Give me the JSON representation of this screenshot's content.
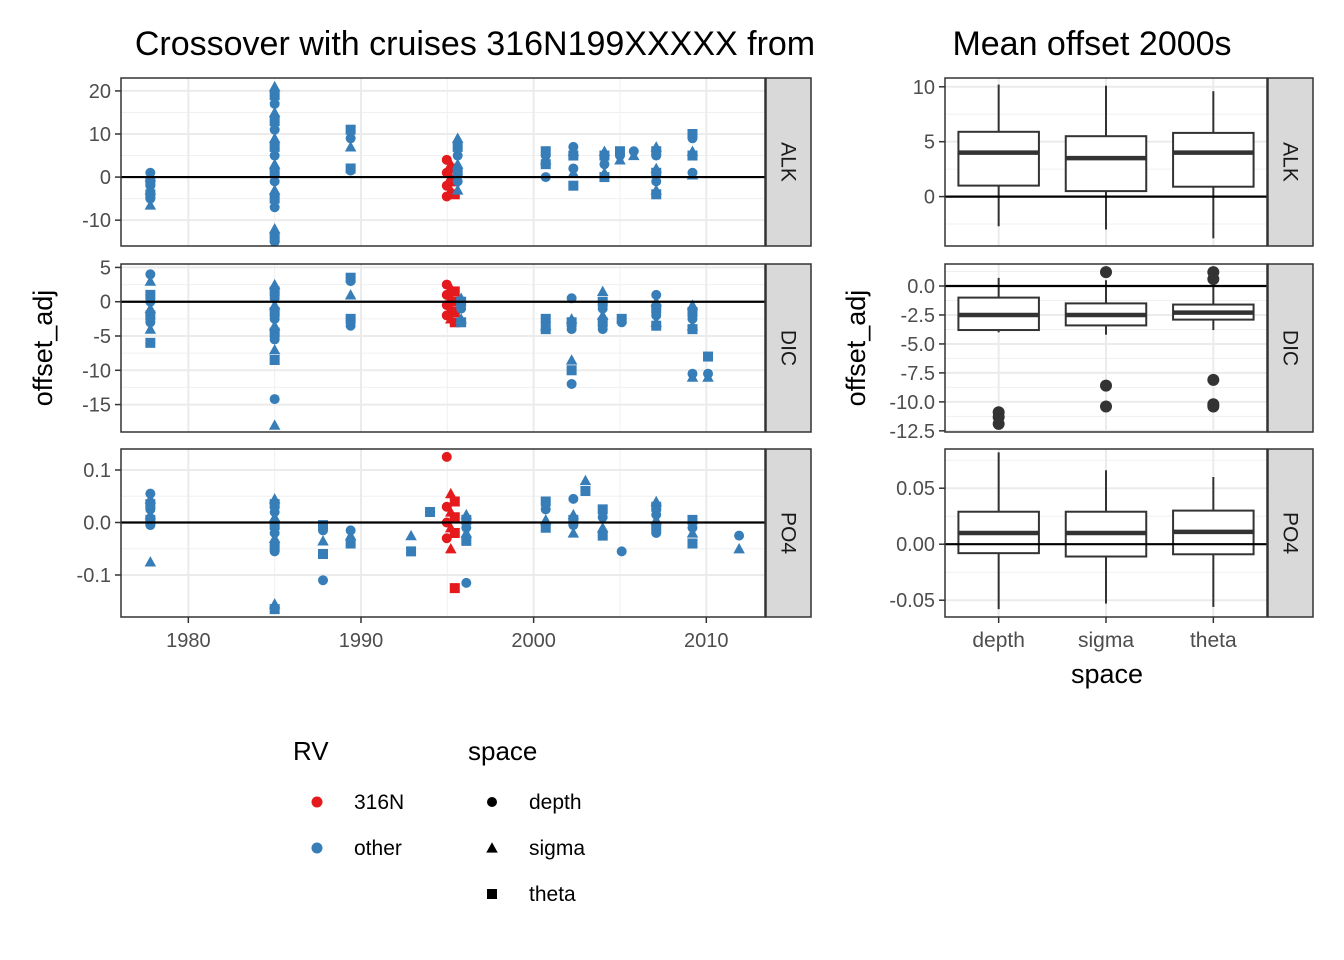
{
  "chart_data": [
    {
      "type": "scatter",
      "title": "Crossover with cruises 316N199XXXXX from",
      "xlabel": "",
      "ylabel": "offset_adj",
      "x_ticks": [
        1980,
        1990,
        2000,
        2010
      ],
      "xlim": [
        1976.1,
        2013.4
      ],
      "hline": 0,
      "series": [
        {
          "name": "316N",
          "color": "#E41A1C"
        },
        {
          "name": "other",
          "color": "#377EB8"
        }
      ],
      "facets": [
        {
          "label": "ALK",
          "ylim": [
            -16,
            23
          ],
          "y_ticks": [
            20,
            10,
            0,
            -10
          ],
          "y_tick_labels": [
            "20",
            "10",
            "0",
            "-10"
          ],
          "points": [
            {
              "x": 1977.8,
              "ys": [
                1,
                0,
                -1,
                -2,
                -3,
                -4,
                -5,
                -6.5
              ],
              "rv": "other"
            },
            {
              "x": 1985.0,
              "ys": [
                21,
                19,
                17,
                15,
                13,
                11,
                9,
                7,
                5,
                3,
                1,
                -1,
                -3,
                -5,
                -7,
                -12,
                -14,
                -15
              ],
              "rv": "other"
            },
            {
              "x": 1989.4,
              "ys": [
                11,
                9,
                7,
                2,
                1.5
              ],
              "rv": "other"
            },
            {
              "x": 1995.2,
              "ys": [
                4,
                3,
                2,
                1,
                0,
                -1,
                -2,
                -3,
                -4,
                -4.5
              ],
              "rv": "316N"
            },
            {
              "x": 1995.6,
              "ys": [
                9,
                7,
                5,
                3,
                1,
                -1,
                -3
              ],
              "rv": "other"
            },
            {
              "x": 2000.7,
              "ys": [
                6,
                5,
                4,
                3,
                0
              ],
              "rv": "other"
            },
            {
              "x": 2002.3,
              "ys": [
                7,
                6,
                5,
                2,
                1,
                -2
              ],
              "rv": "other"
            },
            {
              "x": 2004.1,
              "ys": [
                6,
                5,
                3,
                1,
                0
              ],
              "rv": "other"
            },
            {
              "x": 2005.0,
              "ys": [
                6,
                5,
                4
              ],
              "rv": "other"
            },
            {
              "x": 2005.8,
              "ys": [
                6,
                5
              ],
              "rv": "other"
            },
            {
              "x": 2007.1,
              "ys": [
                7,
                6,
                5,
                2,
                1,
                -1,
                -3,
                -4
              ],
              "rv": "other"
            },
            {
              "x": 2009.2,
              "ys": [
                10,
                9,
                6,
                5,
                1,
                0.5
              ],
              "rv": "other"
            }
          ]
        },
        {
          "label": "DIC",
          "ylim": [
            -19,
            5.5
          ],
          "y_ticks": [
            5,
            0,
            -5,
            -10,
            -15
          ],
          "y_tick_labels": [
            "5",
            "0",
            "-5",
            "-10",
            "-15"
          ],
          "points": [
            {
              "x": 1977.8,
              "ys": [
                4,
                3,
                1,
                0,
                -1,
                -2,
                -3,
                -4,
                -6
              ],
              "rv": "other"
            },
            {
              "x": 1985.0,
              "ys": [
                2.5,
                1.5,
                0.5,
                -0.5,
                -1.5,
                -2.5,
                -3.5,
                -4.5,
                -5.5,
                -7,
                -8.5,
                -14.2,
                -18
              ],
              "rv": "other"
            },
            {
              "x": 1989.4,
              "ys": [
                3.5,
                3,
                1,
                -2.5,
                -3.5
              ],
              "rv": "other"
            },
            {
              "x": 1995.2,
              "ys": [
                2.5,
                2,
                1.5,
                1,
                0.5,
                0,
                -0.5,
                -1,
                -1.5,
                -2,
                -2.5,
                -3
              ],
              "rv": "316N"
            },
            {
              "x": 1995.8,
              "ys": [
                0.5,
                0,
                -1,
                -2.5,
                -3
              ],
              "rv": "other"
            },
            {
              "x": 2000.7,
              "ys": [
                -2.5,
                -3,
                -3.5,
                -4
              ],
              "rv": "other"
            },
            {
              "x": 2002.2,
              "ys": [
                0.5,
                -2.5,
                -3,
                -4,
                -8.5,
                -10,
                -12
              ],
              "rv": "other"
            },
            {
              "x": 2004.0,
              "ys": [
                1.5,
                0,
                -1,
                -2,
                -3,
                -4
              ],
              "rv": "other"
            },
            {
              "x": 2005.1,
              "ys": [
                -2.5,
                -3
              ],
              "rv": "other"
            },
            {
              "x": 2007.1,
              "ys": [
                1,
                0,
                -1,
                -2,
                -3,
                -3.5
              ],
              "rv": "other"
            },
            {
              "x": 2009.2,
              "ys": [
                -0.5,
                -1.5,
                -2.5,
                -3.5,
                -4,
                -10.5,
                -11
              ],
              "rv": "other"
            },
            {
              "x": 2010.1,
              "ys": [
                -8,
                -10.5,
                -11
              ],
              "rv": "other"
            }
          ]
        },
        {
          "label": "PO4",
          "ylim": [
            -0.18,
            0.14
          ],
          "y_ticks": [
            0.1,
            0.0,
            -0.1
          ],
          "y_tick_labels": [
            "0.1",
            "0.0",
            "-0.1"
          ],
          "points": [
            {
              "x": 1977.8,
              "ys": [
                0.055,
                0.045,
                0.035,
                0.025,
                0.015,
                0.005,
                -0.005,
                -0.075
              ],
              "rv": "other"
            },
            {
              "x": 1985.0,
              "ys": [
                0.045,
                0.035,
                0.02,
                0.01,
                -0.005,
                -0.02,
                -0.03,
                -0.045,
                -0.055,
                -0.155,
                -0.165
              ],
              "rv": "other"
            },
            {
              "x": 1987.8,
              "ys": [
                -0.005,
                -0.015,
                -0.035,
                -0.06,
                -0.11
              ],
              "rv": "other"
            },
            {
              "x": 1989.4,
              "ys": [
                -0.015,
                -0.025,
                -0.04
              ],
              "rv": "other"
            },
            {
              "x": 1992.9,
              "ys": [
                -0.025,
                -0.055
              ],
              "rv": "other"
            },
            {
              "x": 1994.0,
              "ys": [
                0.02
              ],
              "rv": "other"
            },
            {
              "x": 1995.2,
              "ys": [
                0.125,
                0.055,
                0.04,
                0.03,
                0.02,
                0.01,
                0,
                -0.01,
                -0.02,
                -0.03,
                -0.05,
                -0.125
              ],
              "rv": "316N"
            },
            {
              "x": 1996.1,
              "ys": [
                0.015,
                0.005,
                -0.01,
                -0.02,
                -0.035,
                -0.115
              ],
              "rv": "other"
            },
            {
              "x": 2000.7,
              "ys": [
                0.04,
                0.025,
                0.005,
                -0.01
              ],
              "rv": "other"
            },
            {
              "x": 2002.3,
              "ys": [
                0.045,
                0.015,
                0.005,
                -0.005,
                -0.02
              ],
              "rv": "other"
            },
            {
              "x": 2003.0,
              "ys": [
                0.08,
                0.06
              ],
              "rv": "other"
            },
            {
              "x": 2004.0,
              "ys": [
                0.025,
                0.01,
                -0.01,
                -0.025
              ],
              "rv": "other"
            },
            {
              "x": 2005.1,
              "ys": [
                -0.055
              ],
              "rv": "other"
            },
            {
              "x": 2007.1,
              "ys": [
                0.04,
                0.03,
                0.015,
                0.005,
                -0.01,
                -0.02
              ],
              "rv": "other"
            },
            {
              "x": 2009.2,
              "ys": [
                0.005,
                -0.01,
                -0.02,
                -0.04
              ],
              "rv": "other"
            },
            {
              "x": 2011.9,
              "ys": [
                -0.025,
                -0.05
              ],
              "rv": "other"
            }
          ]
        }
      ]
    },
    {
      "type": "box",
      "title": "Mean offset 2000s",
      "xlabel": "space",
      "ylabel": "offset_adj",
      "categories": [
        "depth",
        "sigma",
        "theta"
      ],
      "hline": 0,
      "facets": [
        {
          "label": "ALK",
          "ylim": [
            -4.5,
            10.8
          ],
          "y_ticks": [
            10,
            5,
            0
          ],
          "y_tick_labels": [
            "10",
            "5",
            "0"
          ],
          "boxes": [
            {
              "category": "depth",
              "min": -2.7,
              "q1": 1.0,
              "median": 4.0,
              "q3": 5.9,
              "max": 10.2,
              "outliers": []
            },
            {
              "category": "sigma",
              "min": -3.0,
              "q1": 0.5,
              "median": 3.5,
              "q3": 5.5,
              "max": 10.1,
              "outliers": []
            },
            {
              "category": "theta",
              "min": -3.8,
              "q1": 0.9,
              "median": 4.0,
              "q3": 5.8,
              "max": 9.6,
              "outliers": []
            }
          ]
        },
        {
          "label": "DIC",
          "ylim": [
            -12.6,
            1.9
          ],
          "y_ticks": [
            0.0,
            -2.5,
            -5.0,
            -7.5,
            -10.0,
            -12.5
          ],
          "y_tick_labels": [
            "0.0",
            "-2.5",
            "-5.0",
            "-7.5",
            "-10.0",
            "-12.5"
          ],
          "boxes": [
            {
              "category": "depth",
              "min": -4.0,
              "q1": -3.8,
              "median": -2.5,
              "q3": -1.0,
              "max": 0.7,
              "outliers": [
                -10.9,
                -11.3,
                -11.9
              ]
            },
            {
              "category": "sigma",
              "min": -4.2,
              "q1": -3.4,
              "median": -2.5,
              "q3": -1.5,
              "max": 0.5,
              "outliers": [
                1.2,
                -8.6,
                -10.4
              ]
            },
            {
              "category": "theta",
              "min": -3.8,
              "q1": -2.9,
              "median": -2.3,
              "q3": -1.6,
              "max": 0.6,
              "outliers": [
                1.2,
                0.6,
                -8.1,
                -10.2,
                -10.4
              ]
            }
          ]
        },
        {
          "label": "PO4",
          "ylim": [
            -0.065,
            0.085
          ],
          "y_ticks": [
            0.05,
            0.0,
            -0.05
          ],
          "y_tick_labels": [
            "0.05",
            "0.00",
            "-0.05"
          ],
          "boxes": [
            {
              "category": "depth",
              "min": -0.058,
              "q1": -0.008,
              "median": 0.01,
              "q3": 0.029,
              "max": 0.082,
              "outliers": []
            },
            {
              "category": "sigma",
              "min": -0.053,
              "q1": -0.011,
              "median": 0.01,
              "q3": 0.029,
              "max": 0.066,
              "outliers": []
            },
            {
              "category": "theta",
              "min": -0.056,
              "q1": -0.009,
              "median": 0.011,
              "q3": 0.03,
              "max": 0.06,
              "outliers": []
            }
          ]
        }
      ]
    }
  ],
  "legend": {
    "rv_title": "RV",
    "rv_items": [
      {
        "label": "316N",
        "color": "#E41A1C"
      },
      {
        "label": "other",
        "color": "#377EB8"
      }
    ],
    "space_title": "space",
    "space_items": [
      {
        "label": "depth",
        "shape": "circle"
      },
      {
        "label": "sigma",
        "shape": "triangle"
      },
      {
        "label": "theta",
        "shape": "square"
      }
    ]
  }
}
